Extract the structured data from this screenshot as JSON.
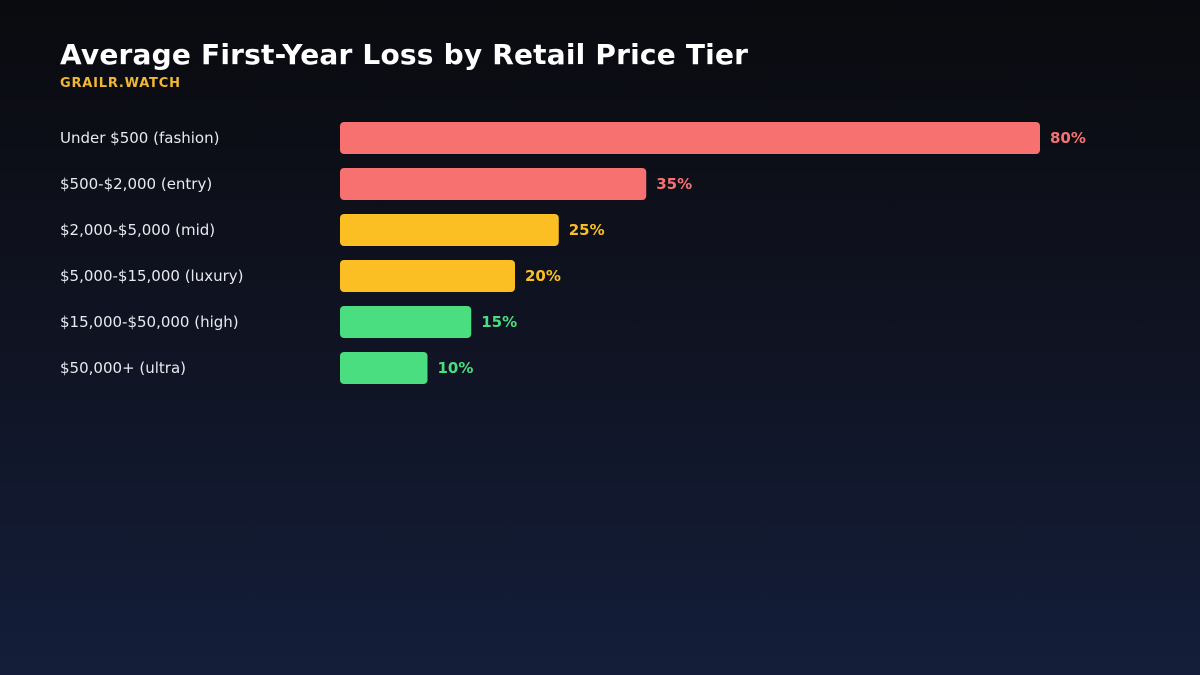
{
  "header": {
    "title": "Average First-Year Loss by Retail Price Tier",
    "subtitle": "GRAILR.WATCH",
    "subtitle_color": "#f2b833"
  },
  "chart_data": {
    "type": "bar",
    "orientation": "horizontal",
    "title": "Average First-Year Loss by Retail Price Tier",
    "xlim": [
      0,
      80
    ],
    "grid": false,
    "categories": [
      "Under $500 (fashion)",
      "$500-$2,000 (entry)",
      "$2,000-$5,000 (mid)",
      "$5,000-$15,000 (luxury)",
      "$15,000-$50,000 (high)",
      "$50,000+ (ultra)"
    ],
    "values": [
      80,
      35,
      25,
      20,
      15,
      10
    ],
    "value_labels": [
      "80%",
      "35%",
      "25%",
      "20%",
      "15%",
      "10%"
    ],
    "colors": [
      "#f87171",
      "#f87171",
      "#fbbf24",
      "#fbbf24",
      "#4ade80",
      "#4ade80"
    ]
  }
}
